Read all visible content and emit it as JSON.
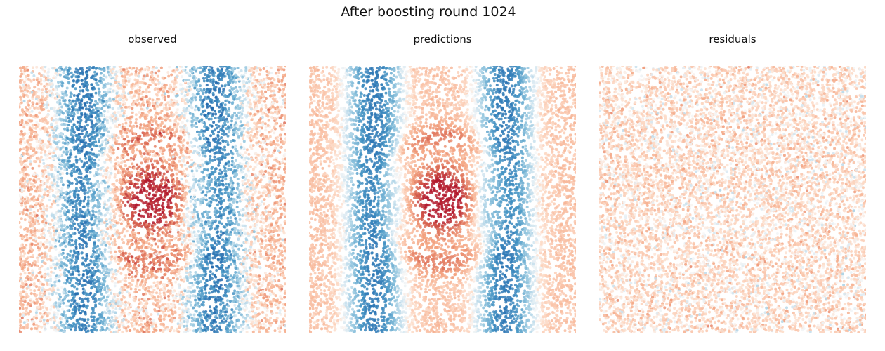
{
  "figure": {
    "title": "After boosting round 1024"
  },
  "colors": {
    "colormap": "RdBu_r",
    "low": "#2166ac",
    "mid": "#f7f7f7",
    "high": "#b2182b",
    "background": "#ffffff"
  },
  "chart_data": [
    {
      "type": "scatter",
      "panel": "observed",
      "title": "observed",
      "axes_visible": false,
      "xlim": [
        0,
        1
      ],
      "ylim": [
        0,
        1
      ],
      "n_points": 9000,
      "field": "vertical blue bands near x≈0.25 and x≈0.72, red blob centered (0.5, 0.5), faint red ring/stripes, light red near edges",
      "color_range": [
        -1,
        1
      ]
    },
    {
      "type": "scatter",
      "panel": "predictions",
      "title": "predictions",
      "axes_visible": false,
      "xlim": [
        0,
        1
      ],
      "ylim": [
        0,
        1
      ],
      "n_points": 9000,
      "field": "same structure as observed, smoother",
      "color_range": [
        -1,
        1
      ]
    },
    {
      "type": "scatter",
      "panel": "residuals",
      "title": "residuals",
      "axes_visible": false,
      "xlim": [
        0,
        1
      ],
      "ylim": [
        0,
        1
      ],
      "n_points": 9000,
      "field": "near-zero noise, mostly faint red with faint blue specks",
      "color_range": [
        -1,
        1
      ]
    }
  ]
}
